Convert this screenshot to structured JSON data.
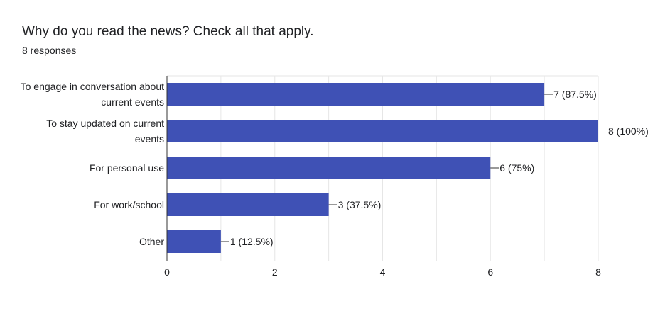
{
  "question": {
    "title": "Why do you read the news? Check all that apply.",
    "responses": "8 responses"
  },
  "colors": {
    "bar": "#3f51b5",
    "grid": "#e6e6e6",
    "axis": "#333333",
    "text": "#202124"
  },
  "chart_data": {
    "type": "bar",
    "orientation": "horizontal",
    "categories": [
      [
        "To engage in conversation about",
        "current events"
      ],
      [
        "To stay updated on current",
        "events"
      ],
      [
        "For personal use"
      ],
      [
        "For work/school"
      ],
      [
        "Other"
      ]
    ],
    "values": [
      7,
      8,
      6,
      3,
      1
    ],
    "data_labels": [
      "7 (87.5%)",
      "8 (100%)",
      "6 (75%)",
      "3 (37.5%)",
      "1 (12.5%)"
    ],
    "xlim": [
      0,
      8
    ],
    "x_ticks": [
      0,
      2,
      4,
      6,
      8
    ],
    "grid": true
  }
}
